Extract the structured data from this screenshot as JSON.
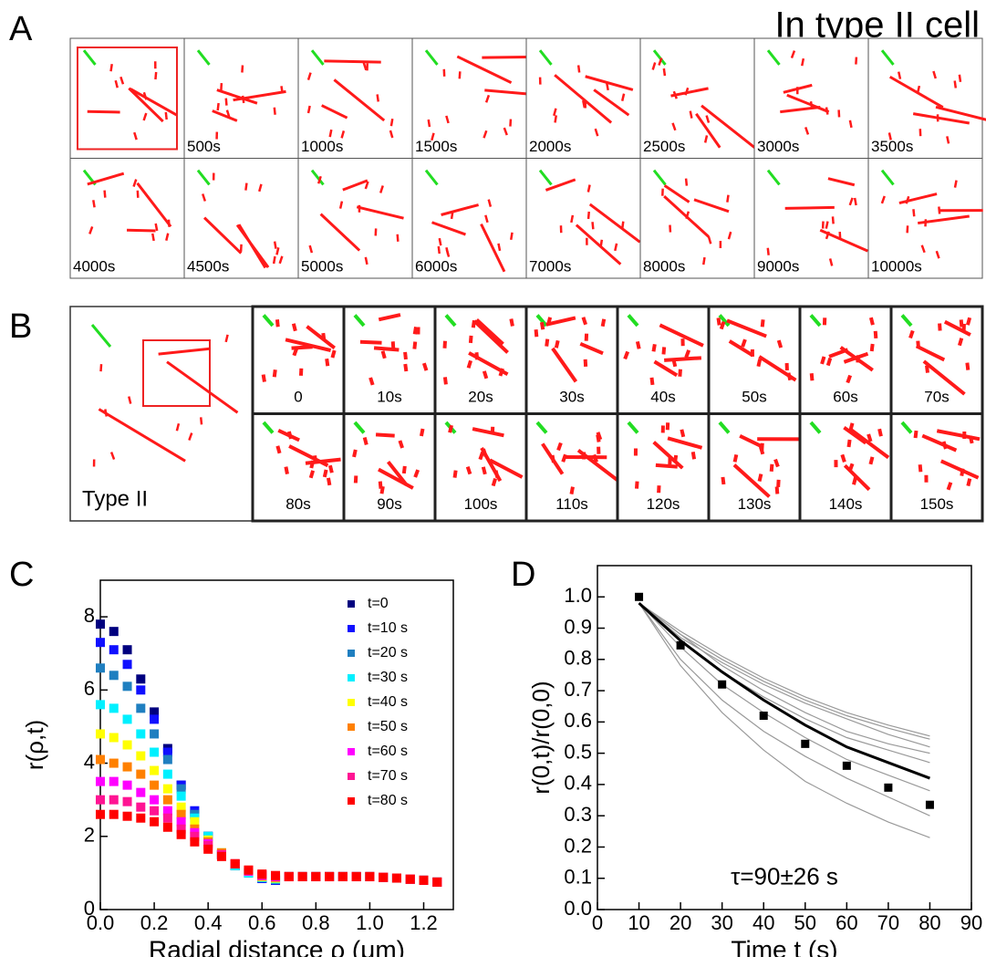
{
  "title": "In type II cell",
  "panel_labels": [
    "A",
    "B",
    "C",
    "D"
  ],
  "panel_a": {
    "frames": [
      "500s",
      "1000s",
      "1500s",
      "2000s",
      "2500s",
      "3000s",
      "3500s",
      "4000s",
      "4500s",
      "5000s",
      "6000s",
      "7000s",
      "8000s",
      "9000s",
      "10000s"
    ]
  },
  "panel_b": {
    "overview_label": "Type II",
    "frames": [
      "0",
      "10s",
      "20s",
      "30s",
      "40s",
      "50s",
      "60s",
      "70s",
      "80s",
      "90s",
      "100s",
      "110s",
      "120s",
      "130s",
      "140s",
      "150s"
    ]
  },
  "chart_data": [
    {
      "type": "scatter",
      "x_label": "Radial distance ρ (μm)",
      "y_label": "r(ρ,t)",
      "xlim": [
        0,
        1.31
      ],
      "ylim": [
        0,
        9
      ],
      "xticks": [
        {
          "value": 0,
          "label": "0.0"
        },
        0.2,
        0.4,
        0.6,
        0.8,
        {
          "value": 1,
          "label": "1.0"
        },
        1.2
      ],
      "yticks": [
        0,
        2,
        4,
        6,
        8
      ],
      "legend": "upper right",
      "marker": "square",
      "x": [
        0,
        0.05,
        0.1,
        0.15,
        0.2,
        0.25,
        0.3,
        0.35,
        0.4,
        0.45,
        0.5,
        0.55,
        0.6,
        0.65,
        0.7,
        0.75,
        0.8,
        0.85,
        0.9,
        0.95,
        1,
        1.05,
        1.1,
        1.15,
        1.2,
        1.25
      ],
      "series": [
        {
          "name": "t=0",
          "color": "#00007f",
          "values": [
            7.8,
            7.6,
            7.1,
            6.3,
            5.4,
            4.4,
            3.4,
            2.6,
            2,
            1.5,
            1.2,
            1,
            0.85,
            0.8,
            0.9,
            0.9,
            0.9,
            0.9,
            0.9,
            0.9,
            0.9,
            0.88,
            0.86,
            0.83,
            0.8,
            0.75
          ]
        },
        {
          "name": "t=10 s",
          "color": "#1010ff",
          "values": [
            7.3,
            7.1,
            6.7,
            6,
            5.2,
            4.3,
            3.4,
            2.7,
            2,
            1.5,
            1.2,
            1,
            0.85,
            0.8,
            0.9,
            0.9,
            0.9,
            0.9,
            0.9,
            0.9,
            0.9,
            0.88,
            0.86,
            0.83,
            0.8,
            0.75
          ]
        },
        {
          "name": "t=20 s",
          "color": "#1f7fc0",
          "values": [
            6.6,
            6.4,
            6.1,
            5.5,
            4.8,
            4.1,
            3.3,
            2.6,
            2,
            1.5,
            1.2,
            1,
            0.87,
            0.82,
            0.9,
            0.9,
            0.9,
            0.9,
            0.9,
            0.9,
            0.9,
            0.88,
            0.86,
            0.83,
            0.8,
            0.75
          ]
        },
        {
          "name": "t=30 s",
          "color": "#00f0ff",
          "values": [
            5.6,
            5.5,
            5.2,
            4.8,
            4.3,
            3.7,
            3.1,
            2.5,
            2,
            1.55,
            1.2,
            1,
            0.88,
            0.84,
            0.9,
            0.9,
            0.9,
            0.9,
            0.9,
            0.9,
            0.9,
            0.88,
            0.86,
            0.83,
            0.8,
            0.75
          ]
        },
        {
          "name": "t=40 s",
          "color": "#ffff00",
          "values": [
            4.8,
            4.7,
            4.5,
            4.2,
            3.8,
            3.3,
            2.8,
            2.4,
            1.9,
            1.55,
            1.25,
            1.05,
            0.9,
            0.86,
            0.9,
            0.9,
            0.9,
            0.9,
            0.9,
            0.9,
            0.9,
            0.88,
            0.86,
            0.83,
            0.8,
            0.75
          ]
        },
        {
          "name": "t=50 s",
          "color": "#ff8000",
          "values": [
            4.1,
            4,
            3.9,
            3.7,
            3.4,
            3,
            2.6,
            2.2,
            1.85,
            1.55,
            1.25,
            1.05,
            0.92,
            0.88,
            0.9,
            0.9,
            0.9,
            0.9,
            0.9,
            0.9,
            0.9,
            0.88,
            0.86,
            0.83,
            0.8,
            0.75
          ]
        },
        {
          "name": "t=60 s",
          "color": "#ff00ff",
          "values": [
            3.5,
            3.5,
            3.4,
            3.2,
            3,
            2.7,
            2.4,
            2.1,
            1.8,
            1.5,
            1.25,
            1.05,
            0.93,
            0.9,
            0.9,
            0.9,
            0.9,
            0.9,
            0.9,
            0.9,
            0.9,
            0.88,
            0.86,
            0.83,
            0.8,
            0.75
          ]
        },
        {
          "name": "t=70 s",
          "color": "#ff1493",
          "values": [
            3,
            3,
            2.95,
            2.8,
            2.7,
            2.5,
            2.2,
            2,
            1.75,
            1.5,
            1.25,
            1.07,
            0.95,
            0.92,
            0.9,
            0.9,
            0.9,
            0.9,
            0.9,
            0.9,
            0.9,
            0.88,
            0.86,
            0.83,
            0.8,
            0.75
          ]
        },
        {
          "name": "t=80 s",
          "color": "#ff0000",
          "values": [
            2.6,
            2.6,
            2.55,
            2.5,
            2.4,
            2.25,
            2.05,
            1.85,
            1.65,
            1.45,
            1.25,
            1.08,
            0.97,
            0.93,
            0.9,
            0.9,
            0.9,
            0.9,
            0.9,
            0.9,
            0.9,
            0.88,
            0.86,
            0.83,
            0.8,
            0.75
          ]
        }
      ]
    },
    {
      "type": "line",
      "x_label": "Time t (s)",
      "y_label": "r(0,t)/r(0,0)",
      "annotation": "τ=90±26 s",
      "xlim": [
        0,
        90
      ],
      "ylim": [
        0,
        1.1
      ],
      "xticks": [
        0,
        10,
        20,
        30,
        40,
        50,
        60,
        70,
        80,
        90
      ],
      "yticks": [
        {
          "value": 0,
          "label": "0.0"
        },
        0.1,
        0.2,
        0.3,
        0.4,
        0.5,
        0.6,
        0.7,
        0.8,
        0.9,
        {
          "value": 1,
          "label": "1.0"
        }
      ],
      "x": [
        10,
        20,
        30,
        40,
        50,
        60,
        70,
        80
      ],
      "series": [
        {
          "color": "#999999",
          "values": [
            0.98,
            0.89,
            0.81,
            0.74,
            0.68,
            0.63,
            0.59,
            0.555
          ]
        },
        {
          "color": "#999999",
          "values": [
            0.98,
            0.88,
            0.8,
            0.73,
            0.67,
            0.62,
            0.58,
            0.545
          ]
        },
        {
          "color": "#999999",
          "values": [
            0.98,
            0.87,
            0.79,
            0.72,
            0.66,
            0.61,
            0.56,
            0.52
          ]
        },
        {
          "color": "#999999",
          "values": [
            0.98,
            0.88,
            0.78,
            0.7,
            0.63,
            0.57,
            0.53,
            0.5
          ]
        },
        {
          "color": "#999999",
          "values": [
            0.98,
            0.86,
            0.76,
            0.68,
            0.61,
            0.55,
            0.51,
            0.47
          ]
        },
        {
          "color": "#999999",
          "values": [
            0.98,
            0.84,
            0.72,
            0.63,
            0.55,
            0.48,
            0.43,
            0.38
          ]
        },
        {
          "color": "#999999",
          "values": [
            0.98,
            0.8,
            0.67,
            0.57,
            0.49,
            0.42,
            0.36,
            0.3
          ]
        },
        {
          "color": "#999999",
          "values": [
            0.98,
            0.78,
            0.63,
            0.51,
            0.41,
            0.34,
            0.28,
            0.23
          ]
        },
        {
          "color": "#000000",
          "line_width": 3,
          "values": [
            0.98,
            0.86,
            0.76,
            0.67,
            0.59,
            0.52,
            0.47,
            0.42
          ]
        },
        {
          "color": "#000000",
          "marker": "square",
          "values": [
            1,
            0.845,
            0.72,
            0.62,
            0.53,
            0.46,
            0.39,
            0.335
          ]
        }
      ]
    }
  ]
}
